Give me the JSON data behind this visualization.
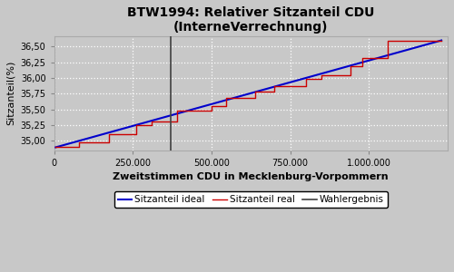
{
  "title": "BTW1994: Relativer Sitzanteil CDU\n(InterneVerrechnung)",
  "xlabel": "Zweitstimmen CDU in Mecklenburg-Vorpommern",
  "ylabel": "Sitzanteil(%)",
  "xlim": [
    0,
    1250000
  ],
  "ylim": [
    34.85,
    36.67
  ],
  "wahlergebnis_x": 370000,
  "yticks": [
    35.0,
    35.25,
    35.5,
    35.75,
    36.0,
    36.25,
    36.5
  ],
  "xticks": [
    0,
    250000,
    500000,
    750000,
    1000000
  ],
  "xtick_labels": [
    "0",
    "250.000",
    "500.000",
    "750.000",
    "1.000.000"
  ],
  "bg_color": "#c8c8c8",
  "grid_color": "#ffffff",
  "line_real_color": "#cc0000",
  "line_ideal_color": "#0000cc",
  "line_wahlergebnis_color": "#404040",
  "legend_labels": [
    "Sitzanteil real",
    "Sitzanteil ideal",
    "Wahlergebnis"
  ],
  "x_start": 5000,
  "x_end": 1230000,
  "y_start": 34.895,
  "y_end": 36.6,
  "step_x": [
    5000,
    80000,
    80000,
    175000,
    175000,
    260000,
    260000,
    310000,
    310000,
    390000,
    390000,
    500000,
    500000,
    545000,
    545000,
    640000,
    640000,
    700000,
    700000,
    800000,
    800000,
    850000,
    850000,
    940000,
    940000,
    980000,
    980000,
    1060000,
    1060000,
    1230000
  ],
  "step_y": [
    34.895,
    34.895,
    34.97,
    34.97,
    35.1,
    35.1,
    35.25,
    35.25,
    35.3,
    35.3,
    35.48,
    35.48,
    35.55,
    35.55,
    35.68,
    35.68,
    35.78,
    35.78,
    35.87,
    35.87,
    35.99,
    35.99,
    36.05,
    36.05,
    36.19,
    36.19,
    36.32,
    36.32,
    36.6,
    36.6
  ]
}
